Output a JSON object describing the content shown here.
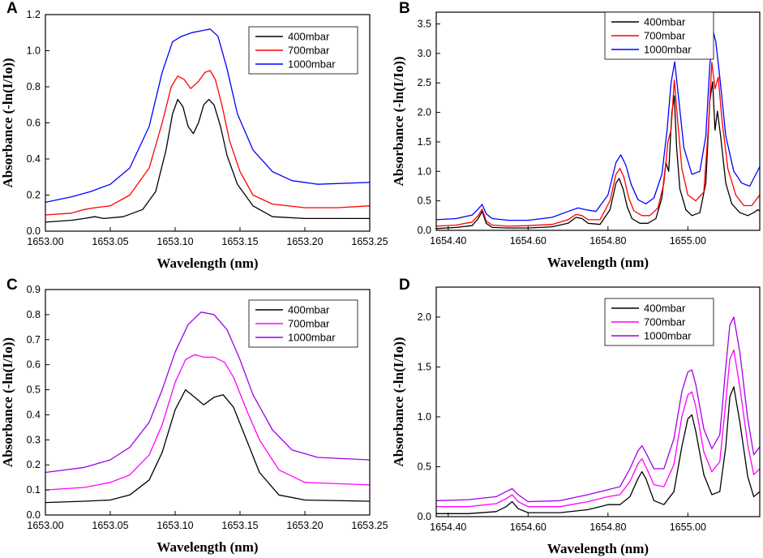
{
  "chart_data": [
    {
      "panel": "A",
      "type": "line",
      "xlabel": "Wavelength (nm)",
      "ylabel": "Absorbance (-ln(I/Io))",
      "xlim": [
        1653.0,
        1653.25
      ],
      "ylim": [
        0,
        1.2
      ],
      "xticks": [
        1653.0,
        1653.05,
        1653.1,
        1653.15,
        1653.2,
        1653.25
      ],
      "xtick_labels": [
        "1653.00",
        "1653.05",
        "1653.10",
        "1653.15",
        "1653.20",
        "1653.25"
      ],
      "yticks": [
        0,
        0.2,
        0.4,
        0.6,
        0.8,
        1.0,
        1.2
      ],
      "ytick_labels": [
        "0.0",
        "0.2",
        "0.4",
        "0.6",
        "0.8",
        "1.0",
        "1.2"
      ],
      "legend": "top-right",
      "series": [
        {
          "name": "400mbar",
          "color": "#000000",
          "x": [
            1653.0,
            1653.02,
            1653.03,
            1653.038,
            1653.045,
            1653.06,
            1653.075,
            1653.085,
            1653.093,
            1653.098,
            1653.102,
            1653.106,
            1653.11,
            1653.114,
            1653.118,
            1653.122,
            1653.126,
            1653.13,
            1653.135,
            1653.14,
            1653.148,
            1653.16,
            1653.175,
            1653.2,
            1653.225,
            1653.25
          ],
          "y": [
            0.05,
            0.06,
            0.07,
            0.08,
            0.07,
            0.08,
            0.12,
            0.22,
            0.45,
            0.65,
            0.73,
            0.69,
            0.58,
            0.54,
            0.6,
            0.7,
            0.73,
            0.7,
            0.58,
            0.42,
            0.26,
            0.14,
            0.08,
            0.07,
            0.07,
            0.07
          ]
        },
        {
          "name": "700mbar",
          "color": "#ff0000",
          "x": [
            1653.0,
            1653.02,
            1653.03,
            1653.038,
            1653.05,
            1653.065,
            1653.08,
            1653.09,
            1653.097,
            1653.102,
            1653.107,
            1653.112,
            1653.118,
            1653.123,
            1653.127,
            1653.131,
            1653.136,
            1653.142,
            1653.15,
            1653.16,
            1653.175,
            1653.2,
            1653.225,
            1653.25
          ],
          "y": [
            0.09,
            0.1,
            0.12,
            0.13,
            0.14,
            0.2,
            0.35,
            0.6,
            0.8,
            0.86,
            0.84,
            0.79,
            0.83,
            0.88,
            0.89,
            0.84,
            0.7,
            0.5,
            0.33,
            0.2,
            0.15,
            0.13,
            0.13,
            0.14
          ]
        },
        {
          "name": "1000mbar",
          "color": "#0000ff",
          "x": [
            1653.0,
            1653.02,
            1653.035,
            1653.05,
            1653.065,
            1653.08,
            1653.09,
            1653.098,
            1653.105,
            1653.113,
            1653.12,
            1653.127,
            1653.133,
            1653.14,
            1653.148,
            1653.16,
            1653.175,
            1653.19,
            1653.21,
            1653.25
          ],
          "y": [
            0.16,
            0.19,
            0.22,
            0.26,
            0.35,
            0.58,
            0.88,
            1.05,
            1.08,
            1.1,
            1.11,
            1.12,
            1.08,
            0.9,
            0.65,
            0.45,
            0.33,
            0.28,
            0.26,
            0.27
          ]
        }
      ]
    },
    {
      "panel": "B",
      "type": "line",
      "xlabel": "Wavelength (nm)",
      "ylabel": "Absorbance (-ln(I/Io))",
      "xlim": [
        1654.37,
        1655.18
      ],
      "ylim": [
        0,
        3.7
      ],
      "xticks": [
        1654.4,
        1654.6,
        1654.8,
        1655.0
      ],
      "xtick_labels": [
        "1654.40",
        "1654.60",
        "1654.80",
        "1655.00"
      ],
      "yticks": [
        0,
        0.5,
        1.0,
        1.5,
        2.0,
        2.5,
        3.0,
        3.5
      ],
      "ytick_labels": [
        "0.0",
        "0.5",
        "1.0",
        "1.5",
        "2.0",
        "2.5",
        "3.0",
        "3.5"
      ],
      "legend": "top-right",
      "series": [
        {
          "name": "400mbar",
          "color": "#000000",
          "x": [
            1654.37,
            1654.42,
            1654.46,
            1654.475,
            1654.485,
            1654.495,
            1654.51,
            1654.55,
            1654.6,
            1654.66,
            1654.7,
            1654.72,
            1654.735,
            1654.75,
            1654.78,
            1654.805,
            1654.82,
            1654.828,
            1654.838,
            1654.848,
            1654.86,
            1654.88,
            1654.9,
            1654.92,
            1654.935,
            1654.945,
            1654.952,
            1654.96,
            1654.966,
            1654.972,
            1654.98,
            1654.995,
            1655.01,
            1655.03,
            1655.045,
            1655.055,
            1655.062,
            1655.068,
            1655.074,
            1655.082,
            1655.095,
            1655.11,
            1655.13,
            1655.15,
            1655.165,
            1655.175,
            1655.18
          ],
          "y": [
            0.03,
            0.05,
            0.08,
            0.2,
            0.32,
            0.12,
            0.05,
            0.04,
            0.04,
            0.06,
            0.12,
            0.22,
            0.2,
            0.12,
            0.1,
            0.35,
            0.8,
            0.88,
            0.7,
            0.4,
            0.2,
            0.12,
            0.12,
            0.2,
            0.55,
            1.15,
            1.0,
            2.0,
            2.28,
            1.4,
            0.7,
            0.35,
            0.25,
            0.3,
            0.8,
            2.2,
            2.52,
            1.7,
            2.02,
            1.6,
            0.8,
            0.45,
            0.3,
            0.25,
            0.3,
            0.35,
            0.33
          ]
        },
        {
          "name": "700mbar",
          "color": "#ff0000",
          "x": [
            1654.37,
            1654.42,
            1654.46,
            1654.475,
            1654.485,
            1654.495,
            1654.51,
            1654.55,
            1654.6,
            1654.66,
            1654.7,
            1654.72,
            1654.735,
            1654.75,
            1654.78,
            1654.805,
            1654.82,
            1654.83,
            1654.84,
            1654.852,
            1654.865,
            1654.885,
            1654.905,
            1654.925,
            1654.94,
            1654.95,
            1654.958,
            1654.966,
            1654.974,
            1654.985,
            1655.0,
            1655.02,
            1655.04,
            1655.052,
            1655.06,
            1655.068,
            1655.076,
            1655.085,
            1655.1,
            1655.12,
            1655.14,
            1655.16,
            1655.18
          ],
          "y": [
            0.07,
            0.09,
            0.14,
            0.25,
            0.36,
            0.16,
            0.09,
            0.07,
            0.08,
            0.1,
            0.18,
            0.27,
            0.25,
            0.18,
            0.18,
            0.5,
            0.95,
            1.05,
            0.9,
            0.55,
            0.33,
            0.25,
            0.25,
            0.38,
            0.8,
            1.5,
            1.7,
            2.55,
            1.9,
            1.05,
            0.6,
            0.5,
            0.65,
            1.8,
            2.85,
            2.4,
            2.6,
            1.9,
            1.05,
            0.6,
            0.42,
            0.42,
            0.6
          ]
        },
        {
          "name": "1000mbar",
          "color": "#0000ff",
          "x": [
            1654.37,
            1654.42,
            1654.46,
            1654.475,
            1654.485,
            1654.495,
            1654.51,
            1654.55,
            1654.6,
            1654.66,
            1654.7,
            1654.725,
            1654.745,
            1654.77,
            1654.8,
            1654.82,
            1654.832,
            1654.845,
            1654.858,
            1654.875,
            1654.895,
            1654.915,
            1654.935,
            1654.948,
            1654.958,
            1654.967,
            1654.976,
            1654.99,
            1655.01,
            1655.03,
            1655.045,
            1655.055,
            1655.063,
            1655.07,
            1655.08,
            1655.095,
            1655.115,
            1655.135,
            1655.155,
            1655.18
          ],
          "y": [
            0.18,
            0.2,
            0.26,
            0.36,
            0.44,
            0.28,
            0.2,
            0.17,
            0.17,
            0.22,
            0.32,
            0.38,
            0.35,
            0.32,
            0.6,
            1.15,
            1.28,
            1.1,
            0.78,
            0.52,
            0.45,
            0.55,
            0.95,
            1.7,
            2.5,
            2.86,
            2.3,
            1.4,
            0.95,
            1.0,
            1.6,
            2.8,
            3.38,
            3.2,
            2.6,
            1.6,
            1.0,
            0.8,
            0.75,
            1.08
          ]
        }
      ]
    },
    {
      "panel": "C",
      "type": "line",
      "xlabel": "Wavelength (nm)",
      "ylabel": "Absorbance (-ln(I/Io))",
      "xlim": [
        1653.0,
        1653.25
      ],
      "ylim": [
        0,
        0.9
      ],
      "xticks": [
        1653.0,
        1653.05,
        1653.1,
        1653.15,
        1653.2,
        1653.25
      ],
      "xtick_labels": [
        "1653.00",
        "1653.05",
        "1653.10",
        "1653.15",
        "1653.20",
        "1653.25"
      ],
      "yticks": [
        0,
        0.1,
        0.2,
        0.3,
        0.4,
        0.5,
        0.6,
        0.7,
        0.8,
        0.9
      ],
      "ytick_labels": [
        "0.0",
        "0.1",
        "0.2",
        "0.3",
        "0.4",
        "0.5",
        "0.6",
        "0.7",
        "0.8",
        "0.9"
      ],
      "legend": "top-right",
      "series": [
        {
          "name": "400mbar",
          "color": "#000000",
          "x": [
            1653.0,
            1653.03,
            1653.05,
            1653.065,
            1653.08,
            1653.09,
            1653.1,
            1653.108,
            1653.115,
            1653.122,
            1653.13,
            1653.137,
            1653.145,
            1653.155,
            1653.165,
            1653.18,
            1653.2,
            1653.25
          ],
          "y": [
            0.05,
            0.055,
            0.06,
            0.08,
            0.14,
            0.25,
            0.42,
            0.5,
            0.47,
            0.44,
            0.47,
            0.48,
            0.43,
            0.3,
            0.17,
            0.08,
            0.06,
            0.055
          ]
        },
        {
          "name": "700mbar",
          "color": "#ff00ff",
          "x": [
            1653.0,
            1653.03,
            1653.05,
            1653.065,
            1653.08,
            1653.09,
            1653.1,
            1653.108,
            1653.115,
            1653.122,
            1653.13,
            1653.138,
            1653.145,
            1653.155,
            1653.165,
            1653.18,
            1653.2,
            1653.25
          ],
          "y": [
            0.1,
            0.11,
            0.13,
            0.16,
            0.24,
            0.36,
            0.53,
            0.62,
            0.64,
            0.63,
            0.63,
            0.61,
            0.55,
            0.42,
            0.3,
            0.18,
            0.13,
            0.12
          ]
        },
        {
          "name": "1000mbar",
          "color": "#a000e8",
          "x": [
            1653.0,
            1653.03,
            1653.05,
            1653.065,
            1653.08,
            1653.09,
            1653.1,
            1653.11,
            1653.12,
            1653.13,
            1653.14,
            1653.15,
            1653.16,
            1653.175,
            1653.19,
            1653.21,
            1653.25
          ],
          "y": [
            0.17,
            0.19,
            0.22,
            0.27,
            0.37,
            0.5,
            0.65,
            0.76,
            0.81,
            0.8,
            0.74,
            0.62,
            0.48,
            0.34,
            0.26,
            0.23,
            0.22
          ]
        }
      ]
    },
    {
      "panel": "D",
      "type": "line",
      "xlabel": "Wavelength (nm)",
      "ylabel": "Absorbance (-ln(I/Io))",
      "xlim": [
        1654.37,
        1655.18
      ],
      "ylim": [
        0,
        2.3
      ],
      "xticks": [
        1654.4,
        1654.6,
        1654.8,
        1655.0
      ],
      "xtick_labels": [
        "1654.40",
        "1654.60",
        "1654.80",
        "1655.00"
      ],
      "yticks": [
        0,
        0.5,
        1.0,
        1.5,
        2.0
      ],
      "ytick_labels": [
        "0.0",
        "0.5",
        "1.0",
        "1.5",
        "2.0"
      ],
      "legend": "top-right",
      "series": [
        {
          "name": "400mbar",
          "color": "#000000",
          "x": [
            1654.37,
            1654.45,
            1654.52,
            1654.545,
            1654.56,
            1654.575,
            1654.6,
            1654.68,
            1654.75,
            1654.78,
            1654.8,
            1654.83,
            1654.855,
            1654.875,
            1654.885,
            1654.895,
            1654.915,
            1654.94,
            1654.965,
            1654.985,
            1655.0,
            1655.01,
            1655.02,
            1655.04,
            1655.06,
            1655.08,
            1655.095,
            1655.105,
            1655.115,
            1655.13,
            1655.15,
            1655.165,
            1655.18
          ],
          "y": [
            0.03,
            0.03,
            0.05,
            0.1,
            0.15,
            0.08,
            0.04,
            0.04,
            0.07,
            0.1,
            0.12,
            0.12,
            0.2,
            0.38,
            0.45,
            0.38,
            0.16,
            0.12,
            0.25,
            0.7,
            0.98,
            1.02,
            0.85,
            0.42,
            0.22,
            0.25,
            0.7,
            1.2,
            1.3,
            0.95,
            0.4,
            0.2,
            0.25
          ]
        },
        {
          "name": "700mbar",
          "color": "#ff00ff",
          "x": [
            1654.37,
            1654.45,
            1654.52,
            1654.545,
            1654.56,
            1654.575,
            1654.6,
            1654.68,
            1654.75,
            1654.78,
            1654.8,
            1654.83,
            1654.855,
            1654.875,
            1654.885,
            1654.895,
            1654.915,
            1654.94,
            1654.965,
            1654.985,
            1655.0,
            1655.01,
            1655.02,
            1655.04,
            1655.06,
            1655.08,
            1655.095,
            1655.105,
            1655.115,
            1655.13,
            1655.15,
            1655.165,
            1655.18
          ],
          "y": [
            0.1,
            0.1,
            0.13,
            0.18,
            0.22,
            0.15,
            0.1,
            0.1,
            0.15,
            0.18,
            0.2,
            0.22,
            0.35,
            0.53,
            0.58,
            0.5,
            0.32,
            0.3,
            0.52,
            1.0,
            1.22,
            1.25,
            1.1,
            0.65,
            0.45,
            0.55,
            1.15,
            1.58,
            1.67,
            1.3,
            0.72,
            0.42,
            0.48
          ]
        },
        {
          "name": "1000mbar",
          "color": "#a000e8",
          "x": [
            1654.37,
            1654.45,
            1654.52,
            1654.545,
            1654.56,
            1654.575,
            1654.6,
            1654.68,
            1654.75,
            1654.78,
            1654.8,
            1654.83,
            1654.855,
            1654.875,
            1654.885,
            1654.895,
            1654.915,
            1654.94,
            1654.965,
            1654.985,
            1655.0,
            1655.01,
            1655.02,
            1655.04,
            1655.06,
            1655.08,
            1655.095,
            1655.105,
            1655.115,
            1655.13,
            1655.15,
            1655.165,
            1655.18
          ],
          "y": [
            0.16,
            0.17,
            0.2,
            0.25,
            0.28,
            0.22,
            0.15,
            0.16,
            0.22,
            0.25,
            0.27,
            0.3,
            0.48,
            0.66,
            0.71,
            0.64,
            0.48,
            0.48,
            0.78,
            1.25,
            1.45,
            1.47,
            1.32,
            0.88,
            0.68,
            0.82,
            1.5,
            1.92,
            2.0,
            1.65,
            0.98,
            0.62,
            0.7
          ]
        }
      ]
    }
  ]
}
